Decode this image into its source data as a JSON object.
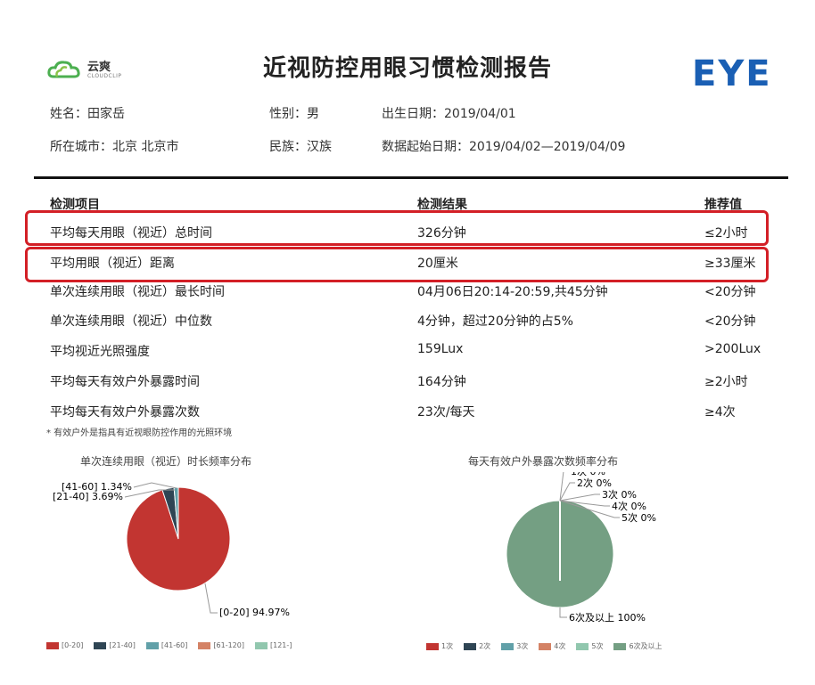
{
  "header": {
    "logo_name": "云爽",
    "logo_sub": "CLOUDCLIP",
    "title": "近视防控用眼习惯检测报告",
    "brand": "EYE"
  },
  "info": {
    "name": "姓名：田家岳",
    "gender": "性别：男",
    "birth": "出生日期：2019/04/01",
    "city": "所在城市：北京 北京市",
    "ethnicity": "民族：汉族",
    "date_range": "数据起始日期：2019/04/02—2019/04/09"
  },
  "table": {
    "headers": [
      "检测项目",
      "检测结果",
      "推荐值"
    ],
    "rows": [
      {
        "item": "平均每天用眼（视近）总时间",
        "result": "326分钟",
        "rec": "≤2小时"
      },
      {
        "item": "平均用眼（视近）距离",
        "result": "20厘米",
        "rec": "≥33厘米"
      },
      {
        "item": "单次连续用眼（视近）最长时间",
        "result": "04月06日20:14-20:59,共45分钟",
        "rec": "<20分钟"
      },
      {
        "item": "单次连续用眼（视近）中位数",
        "result": "4分钟，超过20分钟的占5%",
        "rec": "<20分钟"
      },
      {
        "item": "平均视近光照强度",
        "result": "159Lux",
        "rec": ">200Lux"
      },
      {
        "item": "平均每天有效户外暴露时间",
        "result": "164分钟",
        "rec": "≥2小时"
      },
      {
        "item": "平均每天有效户外暴露次数",
        "result": "23次/每天",
        "rec": "≥4次"
      }
    ],
    "footnote": "* 有效户外是指具有近视眼防控作用的光照环境"
  },
  "chart_data": [
    {
      "type": "pie",
      "title": "单次连续用眼（视近）时长频率分布",
      "categories": [
        "[0-20]",
        "[21-40]",
        "[41-60]",
        "[61-120]",
        "[121-]"
      ],
      "values": [
        94.97,
        3.69,
        1.34,
        0,
        0
      ],
      "labels": [
        "[0-20] 94.97%",
        "[21-40] 3.69%",
        "[41-60] 1.34%"
      ],
      "colors": [
        "#c23531",
        "#2f4554",
        "#61a0a8",
        "#d48265",
        "#91c7ae"
      ],
      "legend": "bottom"
    },
    {
      "type": "pie",
      "title": "每天有效户外暴露次数频率分布",
      "categories": [
        "1次",
        "2次",
        "3次",
        "4次",
        "5次",
        "6次及以上"
      ],
      "values": [
        0,
        0,
        0,
        0,
        0,
        100
      ],
      "labels": [
        "1次 0%",
        "2次 0%",
        "3次 0%",
        "4次 0%",
        "5次 0%",
        "6次及以上 100%"
      ],
      "colors": [
        "#c23531",
        "#2f4554",
        "#61a0a8",
        "#d48265",
        "#91c7ae",
        "#749f83"
      ],
      "legend": "bottom"
    }
  ]
}
